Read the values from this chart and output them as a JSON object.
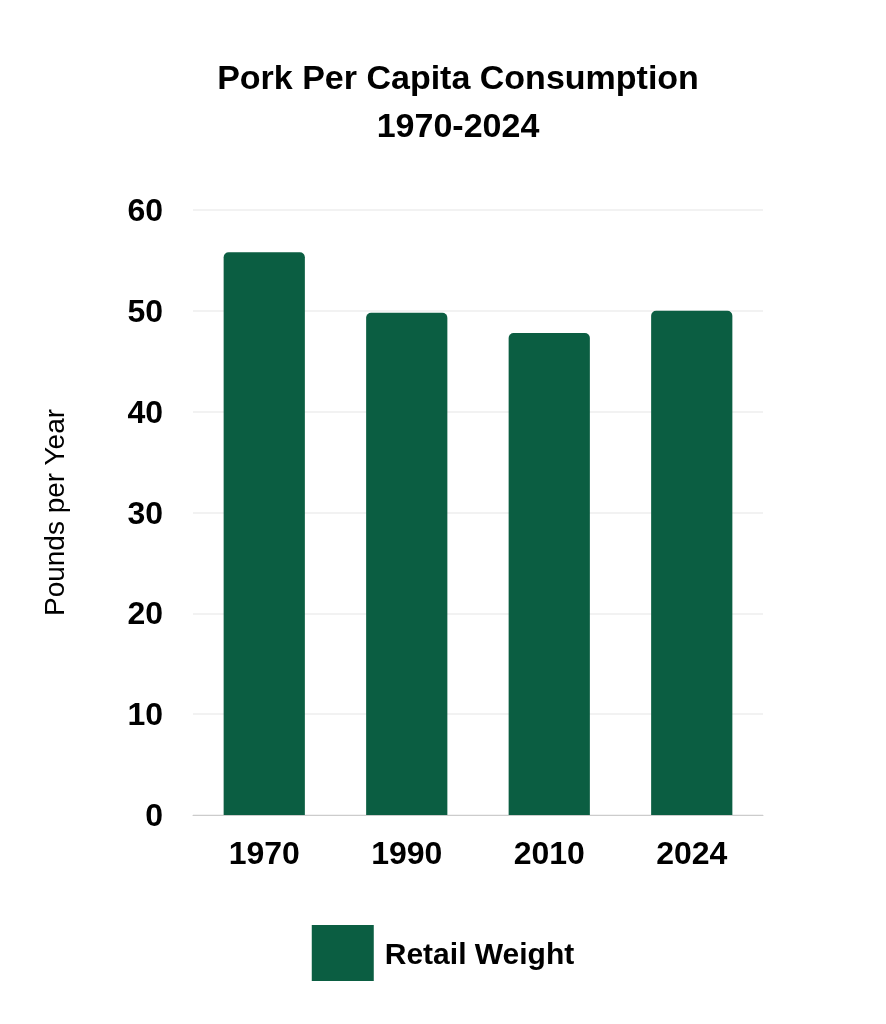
{
  "chart_data": {
    "type": "bar",
    "title": "Pork Per Capita Consumption\n1970-2024",
    "ylabel": "Pounds per Year",
    "categories": [
      "1970",
      "1990",
      "2010",
      "2024"
    ],
    "series": [
      {
        "name": "Retail Weight",
        "color": "#0b5e42",
        "values": [
          55.8,
          49.8,
          47.8,
          50.0
        ]
      }
    ],
    "ylim": [
      0,
      60
    ],
    "yticks": [
      0,
      10,
      20,
      30,
      40,
      50,
      60
    ],
    "grid": "y",
    "legend": "bottom"
  }
}
